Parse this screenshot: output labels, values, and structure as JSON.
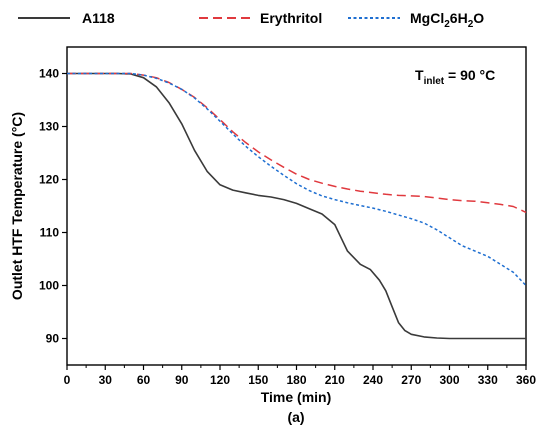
{
  "chart_data": {
    "type": "line",
    "xlabel": "Time (min)",
    "ylabel": "Outlet HTF Temperature (°C)",
    "panel_label": "(a)",
    "annotation": {
      "main": "T",
      "sub": "inlet",
      "rest": " = 90 °C"
    },
    "xlim": [
      0,
      360
    ],
    "ylim": [
      85,
      145
    ],
    "xticks": [
      0,
      30,
      60,
      90,
      120,
      150,
      180,
      210,
      240,
      270,
      300,
      330,
      360
    ],
    "yticks": [
      90,
      100,
      110,
      120,
      130,
      140
    ],
    "grid": false,
    "legend_position": "top, outside plot",
    "series": [
      {
        "name": "A118",
        "color": "#3a3a3a",
        "dash": "solid",
        "x": [
          0,
          40,
          50,
          60,
          70,
          80,
          90,
          100,
          110,
          120,
          130,
          140,
          150,
          160,
          170,
          180,
          190,
          200,
          210,
          215,
          220,
          230,
          238,
          245,
          250,
          255,
          260,
          265,
          270,
          280,
          290,
          300,
          330,
          360
        ],
        "y": [
          140,
          140,
          139.9,
          139.2,
          137.5,
          134.5,
          130.5,
          125.5,
          121.5,
          119,
          118,
          117.5,
          117,
          116.7,
          116.2,
          115.5,
          114.5,
          113.5,
          111.5,
          109,
          106.5,
          104,
          103,
          101,
          99,
          96,
          93,
          91.5,
          90.8,
          90.3,
          90.1,
          90,
          90,
          90
        ]
      },
      {
        "name": "Erythritol",
        "color": "#e0393e",
        "dash": "long-dash",
        "x": [
          0,
          40,
          50,
          60,
          70,
          80,
          90,
          100,
          110,
          120,
          130,
          140,
          150,
          160,
          170,
          180,
          190,
          200,
          210,
          220,
          230,
          240,
          250,
          260,
          270,
          280,
          290,
          300,
          310,
          320,
          330,
          340,
          350,
          360
        ],
        "y": [
          140,
          140,
          140,
          139.7,
          139.2,
          138.3,
          137,
          135.5,
          133.5,
          131.3,
          129,
          127,
          125.2,
          123.7,
          122.3,
          121,
          120,
          119.3,
          118.7,
          118.2,
          117.8,
          117.5,
          117.2,
          117,
          116.9,
          116.8,
          116.5,
          116.2,
          116,
          115.9,
          115.6,
          115.3,
          114.9,
          113.8
        ]
      },
      {
        "name": "MgCl26H2O",
        "label_main": "MgCl",
        "label_sub1": "2",
        "label_mid": "6H",
        "label_sub2": "2",
        "label_end": "O",
        "color": "#1f6fd1",
        "dash": "dotted",
        "x": [
          0,
          40,
          50,
          60,
          70,
          80,
          90,
          100,
          110,
          120,
          130,
          140,
          150,
          160,
          170,
          180,
          190,
          200,
          210,
          220,
          230,
          240,
          250,
          260,
          270,
          280,
          290,
          300,
          310,
          320,
          330,
          340,
          350,
          360
        ],
        "y": [
          140,
          140,
          140,
          139.7,
          139.1,
          138.2,
          137,
          135.4,
          133.3,
          131,
          128.6,
          126.3,
          124.3,
          122.5,
          120.8,
          119.2,
          117.9,
          116.9,
          116.2,
          115.6,
          115.1,
          114.6,
          114,
          113.3,
          112.6,
          111.8,
          110.5,
          109,
          107.5,
          106.5,
          105.5,
          104,
          102.5,
          100
        ]
      }
    ]
  }
}
